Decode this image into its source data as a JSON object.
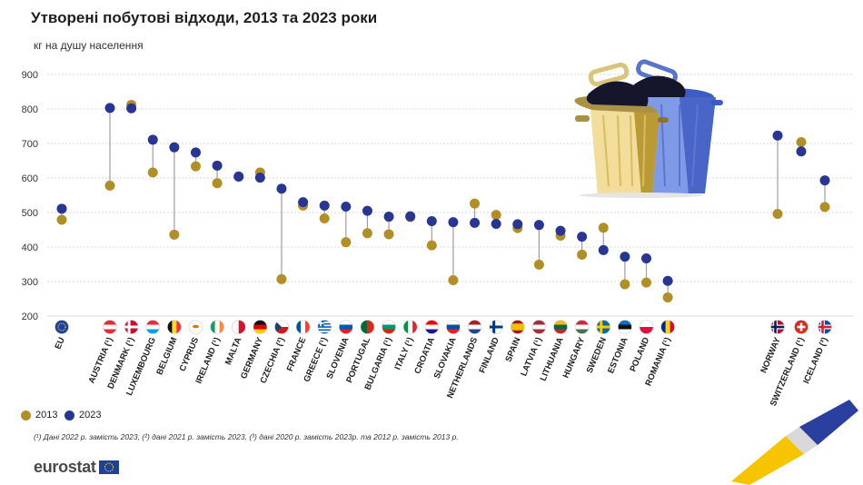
{
  "title": "Утворені побутові відходи, 2013 та 2023 роки",
  "subtitle": "кг на душу населення",
  "legend": {
    "y2013": "2013",
    "y2023": "2023"
  },
  "footnote": "(¹) Дані 2022 р. замість 2023, (²) дані 2021 р. замість 2023, (³) дані 2020 р. замість 2023р. та 2012 р. замість 2013 р.",
  "brand": "eurostat",
  "colors": {
    "y2013": "#b09026",
    "y2023": "#283593",
    "connector": "#9e9e9e",
    "grid": "#d9d9d9"
  },
  "chart_data": {
    "type": "dot",
    "title": "Утворені побутові відходи, 2013 та 2023 роки",
    "ylabel": "кг на душу населення",
    "ylim": [
      200,
      900
    ],
    "yticks": [
      200,
      300,
      400,
      500,
      600,
      700,
      800,
      900
    ],
    "grid": true,
    "legend_position": "bottom-left",
    "categories": [
      "EU",
      "AUSTRIA (¹)",
      "DENMARK (¹)",
      "LUXEMBOURG",
      "BELGIUM",
      "CYPRUS",
      "IRELAND (¹)",
      "MALTA",
      "GERMANY",
      "CZECHIA (²)",
      "FRANCE",
      "GREECE (¹)",
      "SLOVENIA",
      "PORTUGAL",
      "BULGARIA (¹)",
      "ITALY (¹)",
      "CROATIA",
      "SLOVAKIA",
      "NETHERLANDS",
      "FINLAND",
      "SPAIN",
      "LATVIA (¹)",
      "LITHUANIA",
      "HUNGARY",
      "SWEDEN",
      "ESTONIA",
      "POLAND",
      "ROMANIA (¹)",
      "NORWAY",
      "SWITZERLAND (¹)",
      "ICELAND (³)"
    ],
    "flags": [
      "eu",
      "at",
      "dk",
      "lu",
      "be",
      "cy",
      "ie",
      "mt",
      "de",
      "cz",
      "fr",
      "gr",
      "si",
      "pt",
      "bg",
      "it",
      "hr",
      "sk",
      "nl",
      "fi",
      "es",
      "lv",
      "lt",
      "hu",
      "se",
      "ee",
      "pl",
      "ro",
      "no",
      "ch",
      "is"
    ],
    "series": [
      {
        "name": "2013",
        "values": [
          479,
          578,
          812,
          616,
          436,
          634,
          585,
          605,
          616,
          307,
          520,
          483,
          414,
          440,
          437,
          487,
          405,
          304,
          526,
          493,
          455,
          349,
          433,
          378,
          456,
          292,
          297,
          254,
          496,
          704,
          516
        ]
      },
      {
        "name": "2023",
        "values": [
          511,
          803,
          802,
          711,
          689,
          674,
          636,
          604,
          601,
          569,
          530,
          520,
          517,
          505,
          488,
          489,
          475,
          472,
          470,
          467,
          466,
          464,
          447,
          430,
          391,
          372,
          367,
          302,
          723,
          677,
          593
        ]
      }
    ]
  }
}
